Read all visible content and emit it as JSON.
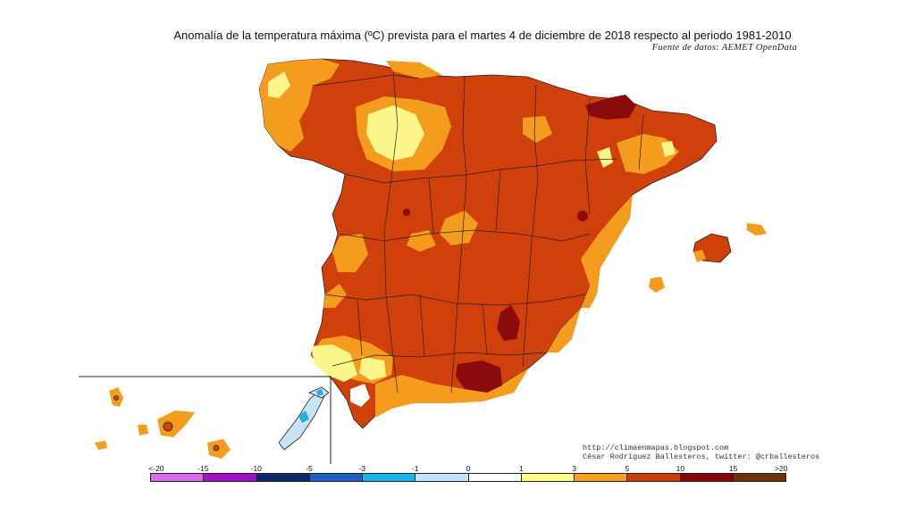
{
  "title": "Anomalía de la temperatura máxima (ºC) prevista para el martes 4 de diciembre de 2018 respecto al periodo 1981-2010",
  "source": "Fuente de datos: AEMET OpenData",
  "credits": {
    "url": "http://climaenmapas.blogspot.com",
    "author": "César Rodríguez Ballesteros, twitter: @crballesteros"
  },
  "legend": {
    "labels": [
      "<-20",
      "-15",
      "-10",
      "-5",
      "-3",
      "-1",
      "0",
      "1",
      "3",
      "5",
      "10",
      "15",
      ">20"
    ],
    "colors": [
      "#d86bea",
      "#a010c8",
      "#0a2a6a",
      "#1e5fc8",
      "#18b4ec",
      "#c4e4f6",
      "#ffffff",
      "#ffff88",
      "#f7a21c",
      "#d03a04",
      "#8a0004",
      "#6b3300"
    ]
  },
  "map_colors": {
    "anomaly_5_10": "#d0400a",
    "anomaly_3_5": "#f39c1e",
    "anomaly_1_3": "#fbf58a",
    "anomaly_10_15": "#8a0a0e",
    "anomaly_0_1": "#ffffff",
    "anomaly_m1_0": "#c8e4f4",
    "anomaly_m3_m1": "#28aee2"
  }
}
